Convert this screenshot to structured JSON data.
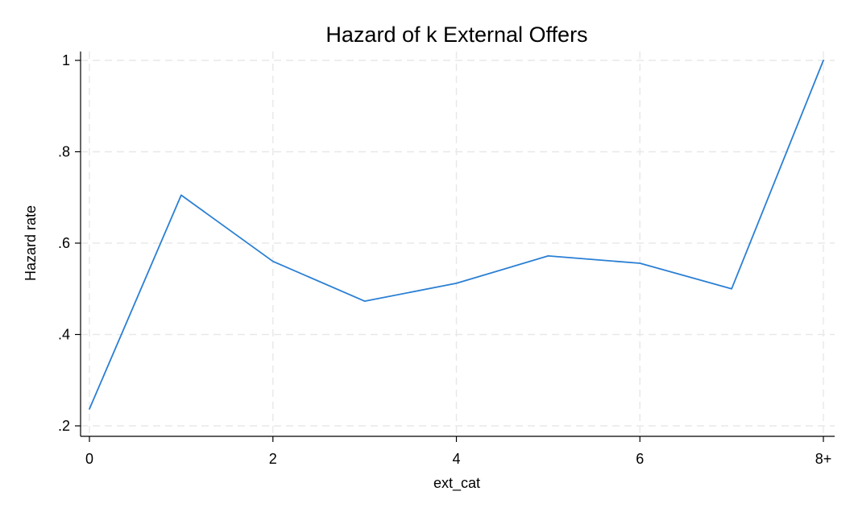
{
  "chart_data": {
    "type": "line",
    "title": "Hazard of k External Offers",
    "xlabel": "ext_cat",
    "ylabel": "Hazard rate",
    "x": [
      0,
      1,
      2,
      3,
      4,
      5,
      6,
      7,
      8
    ],
    "series": [
      {
        "values": [
          0.237,
          0.705,
          0.56,
          0.473,
          0.512,
          0.572,
          0.556,
          0.5,
          1.0
        ],
        "color": "#2a7fd4"
      }
    ],
    "xlim": [
      0,
      8
    ],
    "ylim": [
      0.2,
      1.0
    ],
    "x_ticks": [
      {
        "value": 0,
        "label": "0"
      },
      {
        "value": 2,
        "label": "2"
      },
      {
        "value": 4,
        "label": "4"
      },
      {
        "value": 6,
        "label": "6"
      },
      {
        "value": 8,
        "label": "8+"
      }
    ],
    "y_ticks": [
      {
        "value": 0.2,
        "label": ".2"
      },
      {
        "value": 0.4,
        "label": ".4"
      },
      {
        "value": 0.6,
        "label": ".6"
      },
      {
        "value": 0.8,
        "label": ".8"
      },
      {
        "value": 1.0,
        "label": "1"
      }
    ],
    "grid": true,
    "grid_color": "#e8e8e8",
    "axis_color": "#000000",
    "background": "#ffffff"
  }
}
